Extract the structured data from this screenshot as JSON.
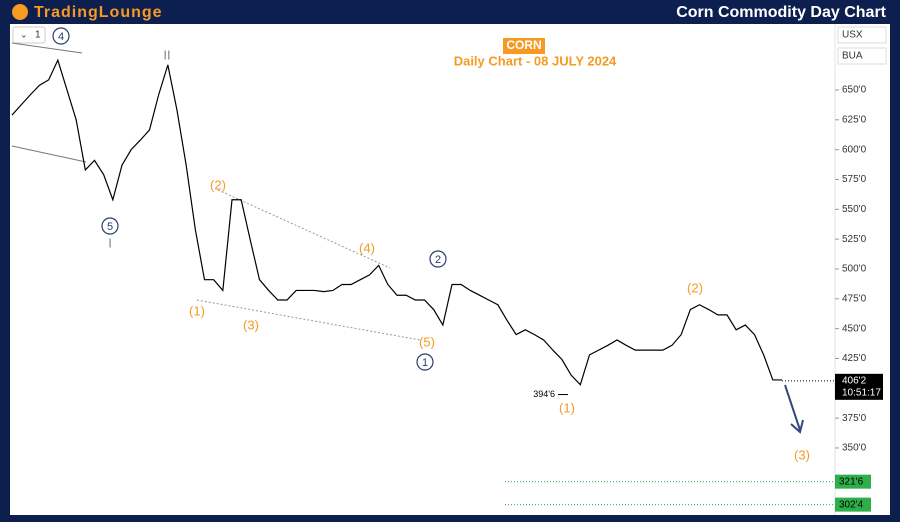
{
  "header": {
    "logo": "TradingLounge",
    "title": "Corn Commodity Day Chart"
  },
  "toolbar": {
    "interval": "1",
    "symbols": [
      "USX",
      "BUA"
    ]
  },
  "chart_data": {
    "type": "line",
    "title": "CORN",
    "subtitle": "Daily Chart - 08 JULY 2024",
    "series": [
      {
        "name": "CORN",
        "color": "#000000",
        "values": [
          629,
          637.5,
          646,
          654,
          658.5,
          675,
          650,
          625,
          583,
          591,
          579,
          558,
          587,
          600,
          608,
          616.5,
          646,
          671,
          633,
          587,
          533,
          491,
          491,
          482,
          558,
          558,
          524,
          491,
          482,
          474,
          474,
          482,
          482,
          482,
          481,
          482,
          487,
          487,
          491,
          495,
          503,
          487,
          478,
          478,
          474,
          474,
          466,
          453,
          487,
          487,
          482,
          478,
          474,
          470,
          457,
          445,
          449,
          445,
          440.5,
          432,
          424,
          411,
          403,
          428,
          432,
          436,
          440.5,
          436,
          432,
          432,
          432,
          432,
          436,
          445,
          466,
          470,
          466,
          461.5,
          461.5,
          449,
          453,
          445,
          428,
          407,
          407
        ]
      }
    ],
    "ylim": [
      293.8,
      705.3
    ],
    "yticks": [
      {
        "value": 350,
        "label": "350'0"
      },
      {
        "value": 375,
        "label": "375'0"
      },
      {
        "value": 400,
        "label": "400'0"
      },
      {
        "value": 425,
        "label": "425'0"
      },
      {
        "value": 450,
        "label": "450'0"
      },
      {
        "value": 475,
        "label": "475'0"
      },
      {
        "value": 500,
        "label": "500'0"
      },
      {
        "value": 525,
        "label": "525'0"
      },
      {
        "value": 550,
        "label": "550'0"
      },
      {
        "value": 575,
        "label": "575'0"
      },
      {
        "value": 600,
        "label": "600'0"
      },
      {
        "value": 625,
        "label": "625'0"
      },
      {
        "value": 650,
        "label": "650'0"
      }
    ],
    "current_price": {
      "value": 406.25,
      "label": "406'2"
    },
    "countdown": "10:51:17",
    "low_label": {
      "value": 394.75,
      "label": "394'6"
    },
    "targets": [
      {
        "value": 321.75,
        "label": "321'6"
      },
      {
        "value": 302.5,
        "label": "302'4"
      }
    ],
    "annotations": [
      "4",
      "II",
      "5",
      "I",
      "(2)",
      "(1)",
      "(3)",
      "(4)",
      "(5)",
      "1",
      "2",
      "(2)",
      "(1)",
      "(3)"
    ]
  }
}
